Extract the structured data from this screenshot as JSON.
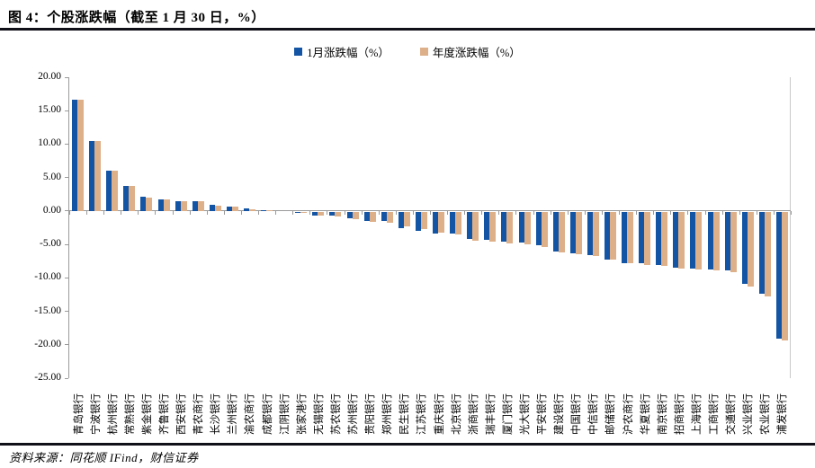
{
  "header": {
    "title": "图 4：个股涨跌幅（截至 1 月 30 日，%）"
  },
  "footer": {
    "source": "资料来源：同花顺 IFind，财信证券"
  },
  "colors": {
    "monthly_bar": "#1355a4",
    "annual_bar": "#deb08a",
    "axis": "#9a9a9a",
    "rule": "#101018"
  },
  "chart_data": {
    "type": "bar",
    "title": "",
    "xlabel": "",
    "ylabel": "",
    "ylim": [
      -25,
      20
    ],
    "ytick_step": 5,
    "ytick_labels": [
      "20.00",
      "15.00",
      "10.00",
      "5.00",
      "0.00",
      "-5.00",
      "-10.00",
      "-15.00",
      "-20.00",
      "-25.00"
    ],
    "grid": false,
    "legend_position": "top-center",
    "categories": [
      "青岛银行",
      "宁波银行",
      "杭州银行",
      "常熟银行",
      "紫金银行",
      "齐鲁银行",
      "西安银行",
      "青农商行",
      "长沙银行",
      "兰州银行",
      "渝农商行",
      "成都银行",
      "江阴银行",
      "张家港行",
      "无锡银行",
      "苏农银行",
      "苏州银行",
      "贵阳银行",
      "郑州银行",
      "民生银行",
      "江苏银行",
      "重庆银行",
      "北京银行",
      "浙商银行",
      "瑞丰银行",
      "厦门银行",
      "光大银行",
      "平安银行",
      "建设银行",
      "中国银行",
      "中信银行",
      "邮储银行",
      "沪农商行",
      "华夏银行",
      "南京银行",
      "招商银行",
      "上海银行",
      "工商银行",
      "交通银行",
      "兴业银行",
      "农业银行",
      "浦发银行"
    ],
    "series": [
      {
        "name": "1月涨跌幅（%）",
        "color": "#1355a4",
        "values": [
          16.6,
          10.4,
          6.0,
          3.8,
          2.1,
          1.7,
          1.5,
          1.5,
          0.9,
          0.7,
          0.4,
          0.1,
          0.0,
          -0.1,
          -0.5,
          -0.6,
          -1.0,
          -1.3,
          -1.4,
          -2.5,
          -2.9,
          -3.2,
          -3.2,
          -4.0,
          -4.2,
          -4.4,
          -4.6,
          -5.0,
          -5.9,
          -6.2,
          -6.4,
          -7.1,
          -7.7,
          -7.7,
          -8.0,
          -8.4,
          -8.5,
          -8.6,
          -8.8,
          -10.8,
          -12.2,
          -18.9
        ]
      },
      {
        "name": "年度涨跌幅（%）",
        "color": "#deb08a",
        "values": [
          16.6,
          10.4,
          6.0,
          3.8,
          2.0,
          1.7,
          1.4,
          1.4,
          0.8,
          0.6,
          0.2,
          0.1,
          0.0,
          -0.2,
          -0.6,
          -0.7,
          -1.1,
          -1.5,
          -1.6,
          -2.1,
          -2.6,
          -3.1,
          -3.4,
          -4.3,
          -4.4,
          -4.7,
          -4.9,
          -5.2,
          -6.1,
          -6.3,
          -6.6,
          -7.2,
          -7.7,
          -7.9,
          -8.1,
          -8.5,
          -8.6,
          -8.8,
          -9.0,
          -11.1,
          -12.6,
          -19.2
        ]
      }
    ]
  }
}
